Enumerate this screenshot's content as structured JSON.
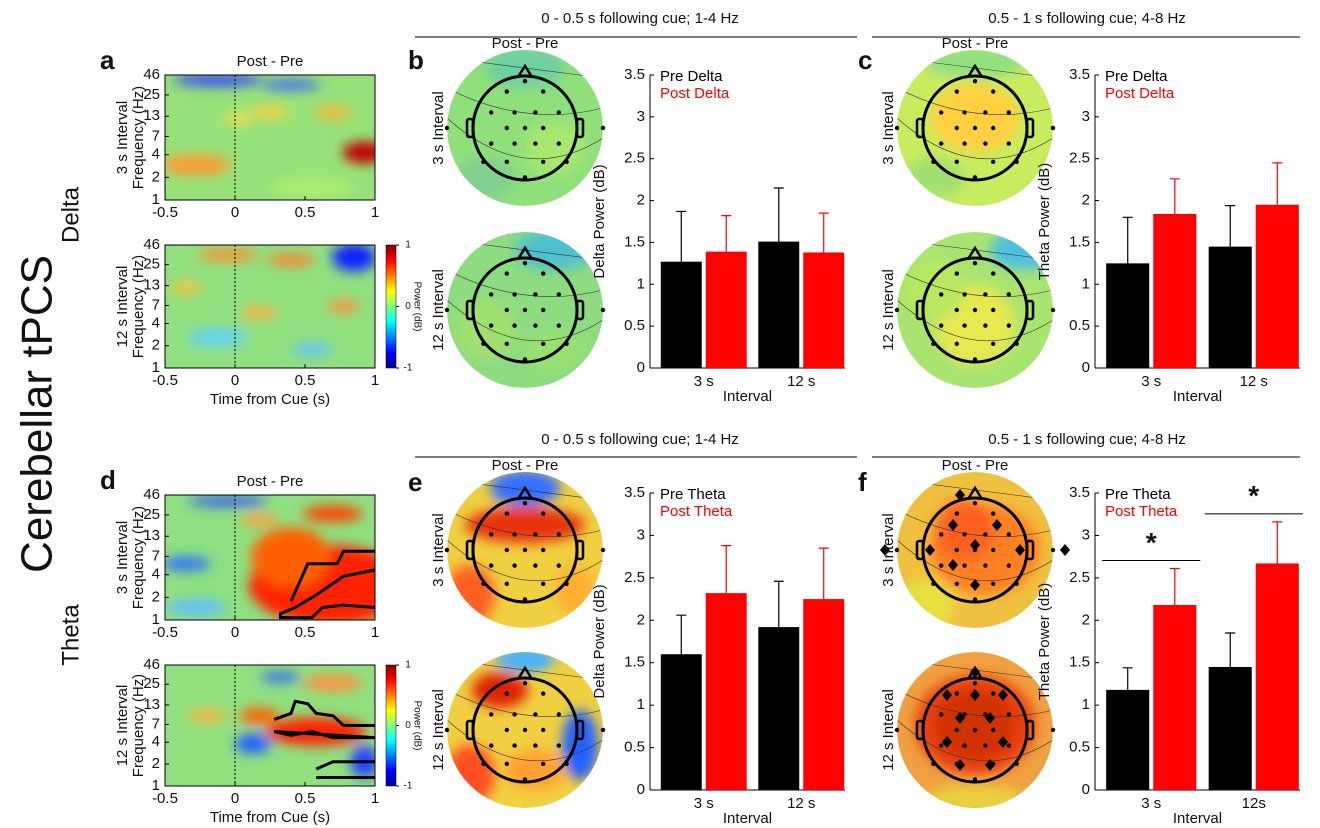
{
  "figure": {
    "title": "Cerebellar tPCS",
    "rows": [
      "Delta",
      "Theta"
    ],
    "headers": [
      "0 - 0.5 s following cue; 1-4 Hz",
      "0.5 - 1 s following cue; 4-8 Hz",
      "0 - 0.5 s following cue; 1-4 Hz",
      "0.5 - 1 s following cue; 4-8 Hz"
    ]
  },
  "chart_data": [
    {
      "type": "heatmap",
      "panel": "a",
      "title": "Post - Pre",
      "ylabel": "3 s Interval",
      "ylabel2": "Frequency (Hz)",
      "ylim": [
        1,
        46
      ],
      "yticks": [
        1,
        2,
        4,
        7,
        13,
        25,
        46
      ],
      "log_y": true,
      "xlim": [
        -0.5,
        1
      ],
      "xticks": [
        -0.5,
        0,
        0.5,
        1
      ]
    },
    {
      "type": "heatmap",
      "ylabel": "12 s Interval",
      "ylabel2": "Frequency (Hz)",
      "xlabel": "Time from Cue (s)",
      "ylim": [
        1,
        46
      ],
      "yticks": [
        1,
        2,
        4,
        7,
        13,
        25,
        46
      ],
      "log_y": true,
      "xlim": [
        -0.5,
        1
      ],
      "xticks": [
        -0.5,
        0,
        0.5,
        1
      ],
      "colorbar": {
        "label": "Power (dB)",
        "lim": [
          -1,
          1
        ],
        "ticks": [
          -1,
          0,
          1
        ]
      }
    },
    {
      "type": "topomap",
      "panel": "b",
      "title": "Post - Pre",
      "ylabel": "3 s Interval"
    },
    {
      "type": "topomap",
      "ylabel": "12 s Interval"
    },
    {
      "type": "bar",
      "categories": [
        "3 s",
        "12 s"
      ],
      "xlabel": "Interval",
      "ylabel": "Delta Power (dB)",
      "ylim": [
        0,
        3.5
      ],
      "yticks": [
        0,
        0.5,
        1,
        1.5,
        2,
        2.5,
        3,
        3.5
      ],
      "series": [
        {
          "name": "Pre Delta",
          "color": "#000000",
          "values": [
            1.27,
            1.51
          ],
          "errors": [
            0.6,
            0.64
          ]
        },
        {
          "name": "Post Delta",
          "color": "#ff0000",
          "values": [
            1.39,
            1.38
          ],
          "errors": [
            0.43,
            0.47
          ]
        }
      ]
    },
    {
      "type": "topomap",
      "panel": "c",
      "title": "Post - Pre",
      "ylabel": "3 s Interval"
    },
    {
      "type": "topomap",
      "ylabel": "12 s Interval"
    },
    {
      "type": "bar",
      "categories": [
        "3 s",
        "12 s"
      ],
      "xlabel": "Interval",
      "ylabel": "Theta Power (dB)",
      "ylim": [
        0,
        3.5
      ],
      "yticks": [
        0,
        0.5,
        1,
        1.5,
        2,
        2.5,
        3,
        3.5
      ],
      "series": [
        {
          "name": "Pre Delta",
          "color": "#000000",
          "values": [
            1.25,
            1.45
          ],
          "errors": [
            0.55,
            0.49
          ]
        },
        {
          "name": "Post Delta",
          "color": "#ff0000",
          "values": [
            1.84,
            1.95
          ],
          "errors": [
            0.42,
            0.5
          ]
        }
      ]
    },
    {
      "type": "heatmap",
      "panel": "d",
      "title": "Post - Pre",
      "ylabel": "3 s Interval",
      "ylabel2": "Frequency (Hz)",
      "ylim": [
        1,
        46
      ],
      "yticks": [
        1,
        2,
        4,
        7,
        13,
        25,
        46
      ],
      "log_y": true,
      "xlim": [
        -0.5,
        1
      ],
      "xticks": [
        -0.5,
        0,
        0.5,
        1
      ]
    },
    {
      "type": "heatmap",
      "ylabel": "12 s Interval",
      "ylabel2": "Frequency (Hz)",
      "xlabel": "Time from Cue (s)",
      "ylim": [
        1,
        46
      ],
      "yticks": [
        1,
        2,
        4,
        7,
        13,
        25,
        46
      ],
      "log_y": true,
      "xlim": [
        -0.5,
        1
      ],
      "xticks": [
        -0.5,
        0,
        0.5,
        1
      ],
      "colorbar": {
        "label": "Power (dB)",
        "lim": [
          -1,
          1
        ],
        "ticks": [
          -1,
          0,
          1
        ]
      }
    },
    {
      "type": "topomap",
      "panel": "e",
      "title": "Post - Pre",
      "ylabel": "3 s Interval"
    },
    {
      "type": "topomap",
      "ylabel": "12 s Interval"
    },
    {
      "type": "bar",
      "categories": [
        "3 s",
        "12 s"
      ],
      "xlabel": "Interval",
      "ylabel": "Delta Power (dB)",
      "ylim": [
        0,
        3.5
      ],
      "yticks": [
        0,
        0.5,
        1,
        1.5,
        2,
        2.5,
        3,
        3.5
      ],
      "series": [
        {
          "name": "Pre Theta",
          "color": "#000000",
          "values": [
            1.6,
            1.92
          ],
          "errors": [
            0.46,
            0.54
          ]
        },
        {
          "name": "Post Theta",
          "color": "#ff0000",
          "values": [
            2.32,
            2.25
          ],
          "errors": [
            0.56,
            0.6
          ]
        }
      ]
    },
    {
      "type": "topomap",
      "panel": "f",
      "title": "Post - Pre",
      "ylabel": "3 s Interval"
    },
    {
      "type": "topomap",
      "ylabel": "12 s Interval"
    },
    {
      "type": "bar",
      "categories": [
        "3 s",
        "12s"
      ],
      "xlabel": "Interval",
      "ylabel": "Theta Power (dB)",
      "ylim": [
        0,
        3.5
      ],
      "yticks": [
        0,
        0.5,
        1,
        1.5,
        2,
        2.5,
        3,
        3.5
      ],
      "series": [
        {
          "name": "Pre Theta",
          "color": "#000000",
          "values": [
            1.18,
            1.45
          ],
          "errors": [
            0.26,
            0.4
          ]
        },
        {
          "name": "Post Theta",
          "color": "#ff0000",
          "values": [
            2.18,
            2.67
          ],
          "errors": [
            0.43,
            0.49
          ]
        }
      ],
      "annotations": [
        "*",
        "*"
      ]
    }
  ]
}
